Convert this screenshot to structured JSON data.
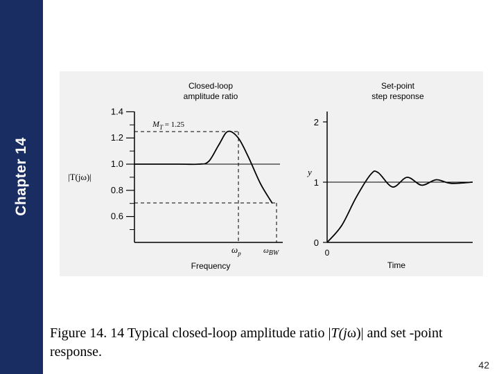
{
  "sidebar": {
    "chapter_label": "Chapter 14"
  },
  "figure": {
    "left_plot": {
      "title_line1": "Closed-loop",
      "title_line2": "amplitude ratio",
      "xlabel": "Frequency",
      "ylabel": "|T(jω)|",
      "mt_label": "M",
      "mt_sub": "T",
      "mt_value": " = 1.25",
      "omega_p_label": "ω",
      "omega_p_sub": "p",
      "omega_bw_label": "ω",
      "omega_bw_sub": "BW",
      "peak": 1.25,
      "bandwidth_level": 0.707
    },
    "right_plot": {
      "title_line1": "Set-point",
      "title_line2": "step response",
      "xlabel": "Time",
      "ylabel": "y",
      "x_origin_label": "0"
    }
  },
  "chart_data": [
    {
      "type": "line",
      "title": "Closed-loop amplitude ratio",
      "xlabel": "Frequency",
      "ylabel": "|T(jω)|",
      "yticks": [
        "1.4",
        "1.2",
        "1.0",
        "0.8",
        "0.6"
      ],
      "ylim": [
        0.45,
        1.45
      ],
      "series": [
        {
          "name": "|T(jω)|",
          "x": [
            0,
            0.3,
            0.43,
            0.5,
            0.57,
            0.63,
            0.7,
            0.77,
            0.85,
            0.93
          ],
          "y": [
            1.0,
            1.0,
            1.0,
            1.02,
            1.15,
            1.25,
            1.2,
            1.05,
            0.85,
            0.7
          ]
        }
      ]
    },
    {
      "type": "line",
      "title": "Set-point step response",
      "xlabel": "Time",
      "ylabel": "y",
      "yticks": [
        "2",
        "1",
        "0"
      ],
      "ylim": [
        0,
        2
      ],
      "series": [
        {
          "name": "y(t)",
          "x": [
            0,
            0.1,
            0.2,
            0.3,
            0.35,
            0.45,
            0.55,
            0.65,
            0.75,
            0.85,
            1.0
          ],
          "y": [
            0,
            0.28,
            0.75,
            1.13,
            1.16,
            0.92,
            1.08,
            0.95,
            1.04,
            0.98,
            1.0
          ]
        }
      ]
    }
  ],
  "caption": {
    "part1": "Figure 14. 14 Typical closed-loop amplitude ratio |",
    "italic": "T(j",
    "part2": "ω)| and set -point response."
  },
  "page_number": "42"
}
